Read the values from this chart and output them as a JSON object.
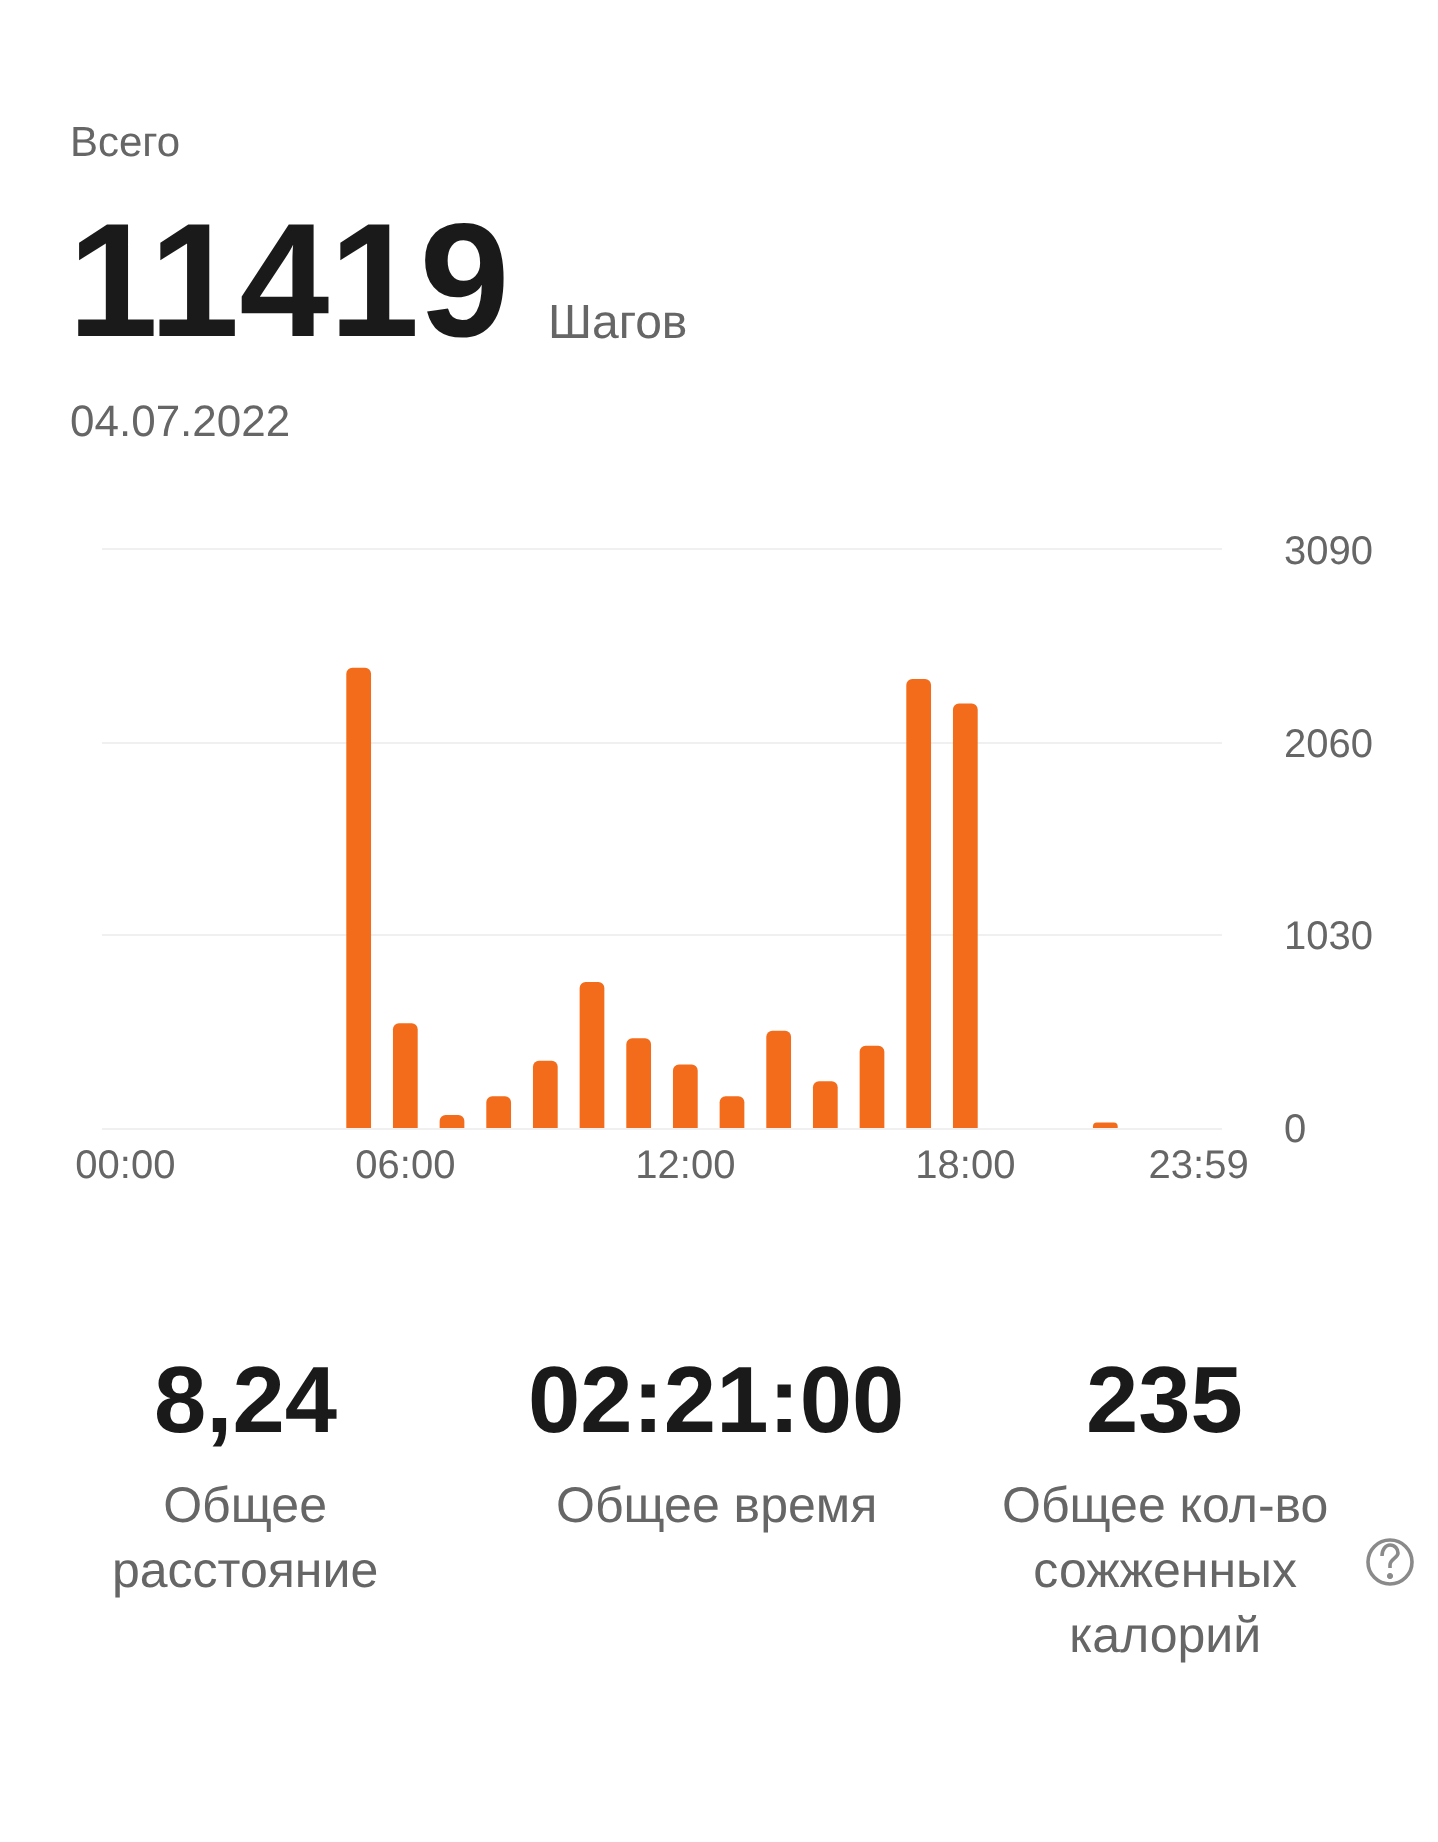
{
  "chart_data": {
    "type": "bar",
    "title": "Всего",
    "subtitle": "04.07.2022",
    "annotations": [
      "11419",
      "Шагов",
      "8,24",
      "Общее расстояние",
      "02:21:00",
      "Общее время",
      "235",
      "Общее кол-во сожженных калорий"
    ],
    "categories": [
      "00:00",
      null,
      null,
      null,
      null,
      null,
      "06:00",
      null,
      null,
      null,
      null,
      null,
      "12:00",
      null,
      null,
      null,
      null,
      null,
      "18:00",
      null,
      null,
      null,
      null,
      "23:59"
    ],
    "values": [
      0,
      0,
      0,
      0,
      0,
      2460,
      560,
      70,
      170,
      360,
      780,
      480,
      340,
      170,
      520,
      250,
      440,
      2400,
      2270,
      0,
      0,
      30,
      0,
      0
    ],
    "color": "#f36c1c",
    "ylim": [
      0,
      3090
    ],
    "yticks": [
      0,
      1030,
      2060,
      3090
    ],
    "grid": "y"
  }
}
